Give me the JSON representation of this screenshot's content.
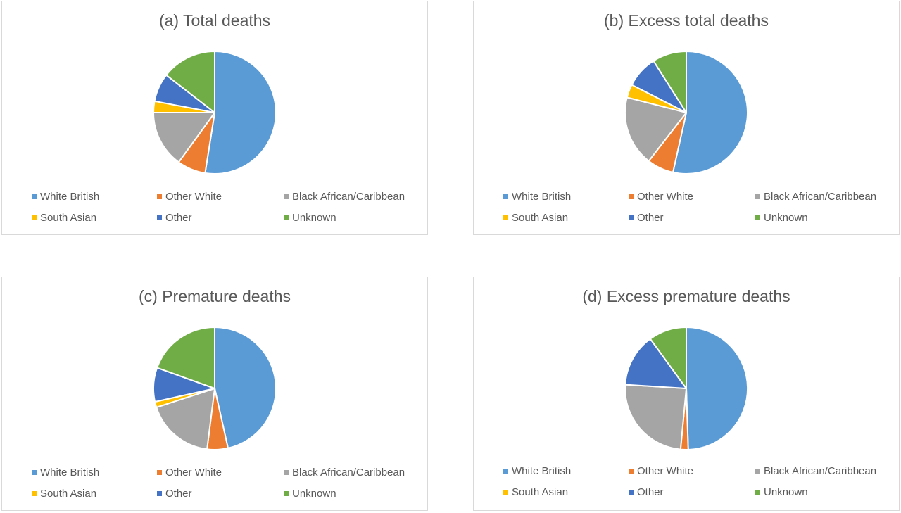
{
  "chart_data": [
    {
      "type": "pie",
      "title": "(a) Total deaths",
      "categories": [
        "White British",
        "Other White",
        "Black African/Caribbean",
        "South Asian",
        "Other",
        "Unknown"
      ],
      "values": [
        52.5,
        7.5,
        15.0,
        3.0,
        7.5,
        14.5
      ],
      "colors": [
        "#5b9bd5",
        "#ed7d31",
        "#a5a5a5",
        "#ffc000",
        "#4472c4",
        "#70ad47"
      ],
      "legend": "bottom"
    },
    {
      "type": "pie",
      "title": "(b) Excess total deaths",
      "categories": [
        "White British",
        "Other White",
        "Black African/Caribbean",
        "South Asian",
        "Other",
        "Unknown"
      ],
      "values": [
        53.5,
        7.0,
        18.5,
        3.5,
        8.5,
        9.0
      ],
      "colors": [
        "#5b9bd5",
        "#ed7d31",
        "#a5a5a5",
        "#ffc000",
        "#4472c4",
        "#70ad47"
      ],
      "legend": "bottom"
    },
    {
      "type": "pie",
      "title": "(c) Premature deaths",
      "categories": [
        "White British",
        "Other White",
        "Black African/Caribbean",
        "South Asian",
        "Other",
        "Unknown"
      ],
      "values": [
        46.5,
        5.5,
        18.0,
        1.5,
        9.0,
        19.5
      ],
      "colors": [
        "#5b9bd5",
        "#ed7d31",
        "#a5a5a5",
        "#ffc000",
        "#4472c4",
        "#70ad47"
      ],
      "legend": "bottom"
    },
    {
      "type": "pie",
      "title": "(d) Excess premature deaths",
      "categories": [
        "White British",
        "Other White",
        "Black African/Caribbean",
        "South Asian",
        "Other",
        "Unknown"
      ],
      "values": [
        49.5,
        2.0,
        24.5,
        0.0,
        14.0,
        10.0
      ],
      "colors": [
        "#5b9bd5",
        "#ed7d31",
        "#a5a5a5",
        "#ffc000",
        "#4472c4",
        "#70ad47"
      ],
      "legend": "bottom"
    }
  ]
}
